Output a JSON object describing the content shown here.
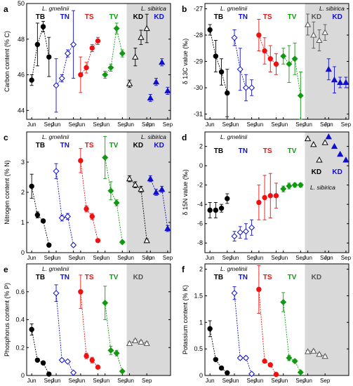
{
  "chart_data": [
    {
      "id": "a",
      "type": "scatter",
      "panel_label": "a",
      "ylabel": "Carbon content (% C)",
      "ylim": [
        43.5,
        50
      ],
      "yticks": [
        44,
        46,
        48,
        50
      ],
      "shaded_from_group": 5,
      "notes": [
        "L. gmelinii",
        "L. sibirica"
      ],
      "groups": [
        {
          "label": "TB",
          "color": "#000000",
          "marker": "circle",
          "fill": true,
          "line": true,
          "points": [
            {
              "y": 45.7,
              "err": 0.3
            },
            {
              "y": 47.7,
              "err": 1.2
            },
            {
              "y": 48.7,
              "err": 0.3
            },
            {
              "y": 47.0,
              "err": 1.1
            }
          ]
        },
        {
          "label": "TN",
          "color": "#1010cc",
          "marker": "diamond",
          "fill": false,
          "line": true,
          "points": [
            {
              "y": 45.4,
              "err": 1.5
            },
            {
              "y": 45.8,
              "err": 0.2
            },
            {
              "y": 47.2,
              "err": 0.2
            },
            {
              "y": 47.7,
              "err": 1.9
            }
          ]
        },
        {
          "label": "TS",
          "color": "#ee1111",
          "marker": "circle",
          "fill": true,
          "line": true,
          "points": [
            {
              "y": 46.0,
              "err": 1.0
            },
            {
              "y": 46.4,
              "err": 0.3
            },
            {
              "y": 47.5,
              "err": 0.2
            },
            {
              "y": 47.9,
              "err": 0.2
            }
          ]
        },
        {
          "label": "TV",
          "color": "#119911",
          "marker": "diamond",
          "fill": true,
          "line": true,
          "points": [
            {
              "y": 46.0,
              "err": 0.2
            },
            {
              "y": 46.4,
              "err": 0.2
            },
            {
              "y": 48.6,
              "err": 0.3
            },
            {
              "y": 47.2,
              "err": 0.2
            }
          ]
        },
        {
          "label": "KD",
          "color": "#000000",
          "marker": "triangle",
          "fill": false,
          "line": false,
          "points": [
            {
              "y": 45.5,
              "err": 0.2
            },
            {
              "y": 47.0,
              "err": 0.5
            },
            {
              "y": 48.1,
              "err": 0.4
            },
            {
              "y": 48.6,
              "err": 0.8
            }
          ]
        },
        {
          "label": "KD",
          "color": "#1010cc",
          "marker": "triangle",
          "fill": true,
          "line": false,
          "points": [
            {
              "y": 44.7,
              "err": 0.2
            },
            {
              "y": 45.6,
              "err": 0.2
            },
            {
              "y": 46.7,
              "err": 0.2
            },
            {
              "y": 45.1,
              "err": 0.2
            }
          ]
        }
      ]
    },
    {
      "id": "b",
      "type": "scatter",
      "panel_label": "b",
      "ylabel": "δ 13C value (‰)",
      "ylim": [
        -31.2,
        -26.8
      ],
      "yticks": [
        -31,
        -30,
        -29,
        -28,
        -27
      ],
      "shaded_from_group": 5,
      "notes": [
        "L. gmelinii",
        "L. sibirica"
      ],
      "groups": [
        {
          "label": "TB",
          "color": "#000000",
          "marker": "circle",
          "fill": true,
          "line": true,
          "points": [
            {
              "y": -27.8,
              "err": 0.2
            },
            {
              "y": -28.8,
              "err": 0.6
            },
            {
              "y": -29.4,
              "err": 0.5
            },
            {
              "y": -30.2,
              "err": 0.9
            }
          ]
        },
        {
          "label": "TN",
          "color": "#1010cc",
          "marker": "diamond",
          "fill": false,
          "line": true,
          "points": [
            {
              "y": -28.1,
              "err": 0.3
            },
            {
              "y": -29.3,
              "err": 0.8
            },
            {
              "y": -30.0,
              "err": 0.5
            },
            {
              "y": -30.0,
              "err": 0.3
            }
          ]
        },
        {
          "label": "TS",
          "color": "#ee1111",
          "marker": "circle",
          "fill": true,
          "line": true,
          "points": [
            {
              "y": -28.0,
              "err": 0.6
            },
            {
              "y": -28.6,
              "err": 0.5
            },
            {
              "y": -28.9,
              "err": 0.5
            },
            {
              "y": -29.1,
              "err": 0.4
            }
          ]
        },
        {
          "label": "TV",
          "color": "#119911",
          "marker": "diamond",
          "fill": true,
          "line": true,
          "points": [
            {
              "y": -28.8,
              "err": 0.3
            },
            {
              "y": -29.1,
              "err": 0.7
            },
            {
              "y": -28.9,
              "err": 0.6
            },
            {
              "y": -30.3,
              "err": 0.9
            }
          ]
        },
        {
          "label": "KD",
          "color": "#555555",
          "marker": "triangle",
          "fill": false,
          "line": false,
          "points": [
            {
              "y": -27.6,
              "err": 0.4
            },
            {
              "y": -28.0,
              "err": 0.5
            },
            {
              "y": -28.2,
              "err": 0.4
            },
            {
              "y": -27.9,
              "err": 0.3
            }
          ]
        },
        {
          "label": "KD",
          "color": "#1010cc",
          "marker": "triangle",
          "fill": true,
          "line": false,
          "points": [
            {
              "y": -29.3,
              "err": 0.4
            },
            {
              "y": -29.7,
              "err": 0.5
            },
            {
              "y": -29.8,
              "err": 0.2
            },
            {
              "y": -29.8,
              "err": 0.2
            }
          ]
        }
      ]
    },
    {
      "id": "c",
      "type": "scatter",
      "panel_label": "c",
      "ylabel": "Nitrogen content (% N)",
      "ylim": [
        0,
        4
      ],
      "yticks": [
        0,
        1,
        2,
        3
      ],
      "shaded_from_group": 5,
      "notes": [
        "L. gmelinii",
        "L. sibirica"
      ],
      "groups": [
        {
          "label": "TB",
          "color": "#000000",
          "marker": "circle",
          "fill": true,
          "line": true,
          "points": [
            {
              "y": 2.2,
              "err": 0.4
            },
            {
              "y": 1.25,
              "err": 0.1
            },
            {
              "y": 1.05,
              "err": 0.05
            },
            {
              "y": 0.25,
              "err": 0.05
            }
          ]
        },
        {
          "label": "TN",
          "color": "#1010cc",
          "marker": "diamond",
          "fill": false,
          "line": true,
          "points": [
            {
              "y": 2.7,
              "err": 0.25
            },
            {
              "y": 1.15,
              "err": 0.1
            },
            {
              "y": 1.2,
              "err": 0.1
            },
            {
              "y": 0.25,
              "err": 0.05
            }
          ]
        },
        {
          "label": "TS",
          "color": "#ee1111",
          "marker": "circle",
          "fill": true,
          "line": true,
          "points": [
            {
              "y": 3.05,
              "err": 0.4
            },
            {
              "y": 1.45,
              "err": 0.1
            },
            {
              "y": 1.2,
              "err": 0.1
            },
            {
              "y": 0.4,
              "err": 0.05
            }
          ]
        },
        {
          "label": "TV",
          "color": "#119911",
          "marker": "diamond",
          "fill": true,
          "line": true,
          "points": [
            {
              "y": 3.15,
              "err": 0.7
            },
            {
              "y": 2.05,
              "err": 0.3
            },
            {
              "y": 1.65,
              "err": 0.1
            },
            {
              "y": 0.35,
              "err": 0.05
            }
          ]
        },
        {
          "label": "KD",
          "color": "#000000",
          "marker": "triangle",
          "fill": false,
          "line": true,
          "points": [
            {
              "y": 2.45,
              "err": 0.1
            },
            {
              "y": 2.25,
              "err": 0.1
            },
            {
              "y": 2.1,
              "err": 0.1
            },
            {
              "y": 0.4,
              "err": 0.05
            }
          ]
        },
        {
          "label": "KD",
          "color": "#1010cc",
          "marker": "triangle",
          "fill": true,
          "line": true,
          "points": [
            {
              "y": 2.45,
              "err": 0.1
            },
            {
              "y": 2.0,
              "err": 0.1
            },
            {
              "y": 2.1,
              "err": 0.1
            },
            {
              "y": 0.8,
              "err": 0.1
            }
          ]
        }
      ]
    },
    {
      "id": "d",
      "type": "scatter",
      "panel_label": "d",
      "ylabel": "δ 15N value (‰)",
      "ylim": [
        -9,
        3.5
      ],
      "yticks": [
        -8,
        -6,
        -4,
        -2,
        0,
        2
      ],
      "shaded_from_group": 5,
      "notes": [
        "L. gmelinii",
        "L. sibirica"
      ],
      "groups": [
        {
          "label": "TB",
          "color": "#000000",
          "marker": "circle",
          "fill": true,
          "line": false,
          "points": [
            {
              "y": -4.6,
              "err": 0.8
            },
            {
              "y": -4.6,
              "err": 0.8
            },
            {
              "y": -4.4,
              "err": 0.4
            },
            {
              "y": -3.4,
              "err": 0.5
            }
          ]
        },
        {
          "label": "TN",
          "color": "#1010cc",
          "marker": "diamond",
          "fill": false,
          "line": false,
          "points": [
            {
              "y": -7.3,
              "err": 0.5
            },
            {
              "y": -6.9,
              "err": 0.6
            },
            {
              "y": -6.8,
              "err": 0.8
            },
            {
              "y": -6.4,
              "err": 0.8
            }
          ]
        },
        {
          "label": "TS",
          "color": "#ee1111",
          "marker": "circle",
          "fill": true,
          "line": false,
          "points": [
            {
              "y": -3.8,
              "err": 1.8
            },
            {
              "y": -3.3,
              "err": 2.3
            },
            {
              "y": -3.1,
              "err": 2.3
            },
            {
              "y": -3.1,
              "err": 1.3
            }
          ]
        },
        {
          "label": "TV",
          "color": "#119911",
          "marker": "diamond",
          "fill": true,
          "line": false,
          "points": [
            {
              "y": -2.4,
              "err": 0.3
            },
            {
              "y": -2.1,
              "err": 0.3
            },
            {
              "y": -2.0,
              "err": 0.2
            },
            {
              "y": -2.0,
              "err": 0.2
            }
          ]
        },
        {
          "label": "KD",
          "color": "#000000",
          "marker": "triangle",
          "fill": false,
          "line": false,
          "points": [
            {
              "y": 2.8,
              "err": 0
            },
            {
              "y": 2.2,
              "err": 0
            },
            {
              "y": 0.6,
              "err": 0
            },
            {
              "y": 2.4,
              "err": 0
            }
          ]
        },
        {
          "label": "KD",
          "color": "#1010cc",
          "marker": "triangle",
          "fill": true,
          "line": false,
          "points": [
            {
              "y": 3.0,
              "err": 0
            },
            {
              "y": 2.0,
              "err": 0
            },
            {
              "y": 1.2,
              "err": 0
            },
            {
              "y": 0.6,
              "err": 0
            }
          ]
        }
      ]
    },
    {
      "id": "e",
      "type": "scatter",
      "panel_label": "e",
      "ylabel": "Phosphorus content (% P)",
      "ylim": [
        0,
        0.8
      ],
      "yticks": [
        0.0,
        0.2,
        0.4,
        0.6
      ],
      "shaded_from_group": 5,
      "notes": [
        "L. gmelinii"
      ],
      "groups": [
        {
          "label": "TB",
          "color": "#000000",
          "marker": "circle",
          "fill": true,
          "line": true,
          "points": [
            {
              "y": 0.33,
              "err": 0.04
            },
            {
              "y": 0.11,
              "err": 0.01
            },
            {
              "y": 0.09,
              "err": 0.01
            },
            {
              "y": 0.01,
              "err": 0.005
            }
          ]
        },
        {
          "label": "TN",
          "color": "#1010cc",
          "marker": "diamond",
          "fill": false,
          "line": true,
          "points": [
            {
              "y": 0.59,
              "err": 0.06
            },
            {
              "y": 0.11,
              "err": 0.01
            },
            {
              "y": 0.1,
              "err": 0.01
            },
            {
              "y": 0.02,
              "err": 0.005
            }
          ]
        },
        {
          "label": "TS",
          "color": "#ee1111",
          "marker": "circle",
          "fill": true,
          "line": true,
          "points": [
            {
              "y": 0.6,
              "err": 0.12
            },
            {
              "y": 0.14,
              "err": 0.02
            },
            {
              "y": 0.11,
              "err": 0.02
            },
            {
              "y": 0.06,
              "err": 0.01
            }
          ]
        },
        {
          "label": "TV",
          "color": "#119911",
          "marker": "diamond",
          "fill": true,
          "line": true,
          "points": [
            {
              "y": 0.52,
              "err": 0.12
            },
            {
              "y": 0.18,
              "err": 0.03
            },
            {
              "y": 0.16,
              "err": 0.02
            },
            {
              "y": 0.03,
              "err": 0.005
            }
          ]
        },
        {
          "label": "KD",
          "color": "#555555",
          "marker": "triangle",
          "fill": false,
          "line": true,
          "points": [
            {
              "y": 0.23,
              "err": 0.01
            },
            {
              "y": 0.25,
              "err": 0.01
            },
            {
              "y": 0.24,
              "err": 0.01
            },
            {
              "y": 0.23,
              "err": 0.01
            }
          ]
        }
      ]
    },
    {
      "id": "f",
      "type": "scatter",
      "panel_label": "f",
      "ylabel": "Potassium content (% K)",
      "ylim": [
        0,
        2.1
      ],
      "yticks": [
        0.0,
        0.5,
        1.0,
        1.5,
        2.0
      ],
      "shaded_from_group": 5,
      "notes": [
        "L. gmelinii"
      ],
      "groups": [
        {
          "label": "TB",
          "color": "#000000",
          "marker": "circle",
          "fill": true,
          "line": true,
          "points": [
            {
              "y": 0.88,
              "err": 0.15
            },
            {
              "y": 0.3,
              "err": 0.03
            },
            {
              "y": 0.14,
              "err": 0.02
            },
            {
              "y": 0.05,
              "err": 0.01
            }
          ]
        },
        {
          "label": "TN",
          "color": "#1010cc",
          "marker": "diamond",
          "fill": false,
          "line": true,
          "points": [
            {
              "y": 1.55,
              "err": 0.12
            },
            {
              "y": 0.33,
              "err": 0.03
            },
            {
              "y": 0.33,
              "err": 0.03
            },
            {
              "y": 0.03,
              "err": 0.01
            }
          ]
        },
        {
          "label": "TS",
          "color": "#ee1111",
          "marker": "circle",
          "fill": true,
          "line": true,
          "points": [
            {
              "y": 1.62,
              "err": 0.45
            },
            {
              "y": 0.27,
              "err": 0.03
            },
            {
              "y": 0.2,
              "err": 0.03
            },
            {
              "y": 0.02,
              "err": 0.01
            }
          ]
        },
        {
          "label": "TV",
          "color": "#119911",
          "marker": "diamond",
          "fill": true,
          "line": true,
          "points": [
            {
              "y": 1.38,
              "err": 0.18
            },
            {
              "y": 0.33,
              "err": 0.05
            },
            {
              "y": 0.27,
              "err": 0.03
            },
            {
              "y": 0.06,
              "err": 0.01
            }
          ]
        },
        {
          "label": "KD",
          "color": "#555555",
          "marker": "triangle",
          "fill": false,
          "line": true,
          "points": [
            {
              "y": 0.45,
              "err": 0.02
            },
            {
              "y": 0.46,
              "err": 0.02
            },
            {
              "y": 0.4,
              "err": 0.02
            },
            {
              "y": 0.36,
              "err": 0.02
            }
          ]
        }
      ]
    }
  ],
  "x_tick_labels": [
    "Jun",
    "Sep"
  ],
  "colors": {
    "shade": "#d9d9d9",
    "axis": "#000000"
  }
}
